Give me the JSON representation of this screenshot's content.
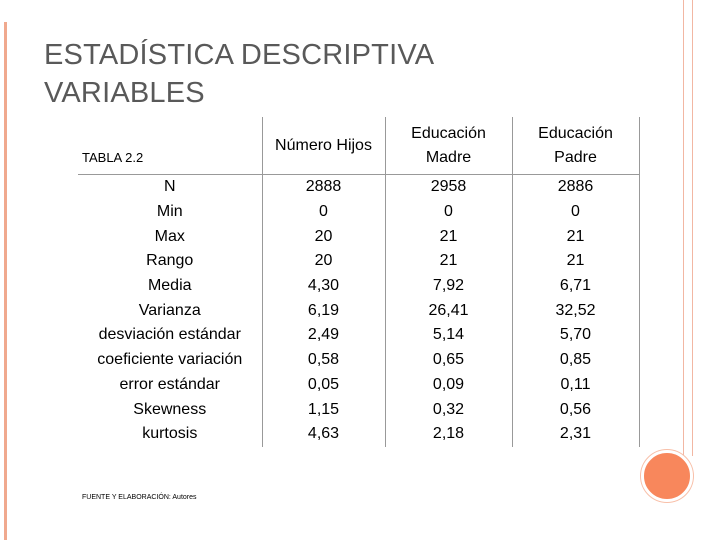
{
  "slide": {
    "title_line1": "ESTADÍSTICA DESCRIPTIVA",
    "title_line2": "VARIABLES",
    "table_label": "TABLA 2.2",
    "footer": "FUENTE Y ELABORACIÓN: Autores"
  },
  "table": {
    "headers": [
      {
        "line1": "Número Hijos",
        "line2": ""
      },
      {
        "line1": "Educación",
        "line2": "Madre"
      },
      {
        "line1": "Educación",
        "line2": "Padre"
      }
    ],
    "rows": [
      {
        "label": "N",
        "values": [
          "2888",
          "2958",
          "2886"
        ]
      },
      {
        "label": "Min",
        "values": [
          "0",
          "0",
          "0"
        ]
      },
      {
        "label": "Max",
        "values": [
          "20",
          "21",
          "21"
        ]
      },
      {
        "label": "Rango",
        "values": [
          "20",
          "21",
          "21"
        ]
      },
      {
        "label": "Media",
        "values": [
          "4,30",
          "7,92",
          "6,71"
        ]
      },
      {
        "label": "Varianza",
        "values": [
          "6,19",
          "26,41",
          "32,52"
        ]
      },
      {
        "label": "desviación estándar",
        "values": [
          "2,49",
          "5,14",
          "5,70"
        ]
      },
      {
        "label": "coeficiente variación",
        "values": [
          "0,58",
          "0,65",
          "0,85"
        ]
      },
      {
        "label": "error estándar",
        "values": [
          "0,05",
          "0,09",
          "0,11"
        ]
      },
      {
        "label": "Skewness",
        "values": [
          "1,15",
          "0,32",
          "0,56"
        ]
      },
      {
        "label": "kurtosis",
        "values": [
          "4,63",
          "2,18",
          "2,31"
        ]
      }
    ]
  },
  "colors": {
    "accent": "#f8875c",
    "rule": "#f0a98e",
    "title": "#595959",
    "grid": "#999999"
  }
}
